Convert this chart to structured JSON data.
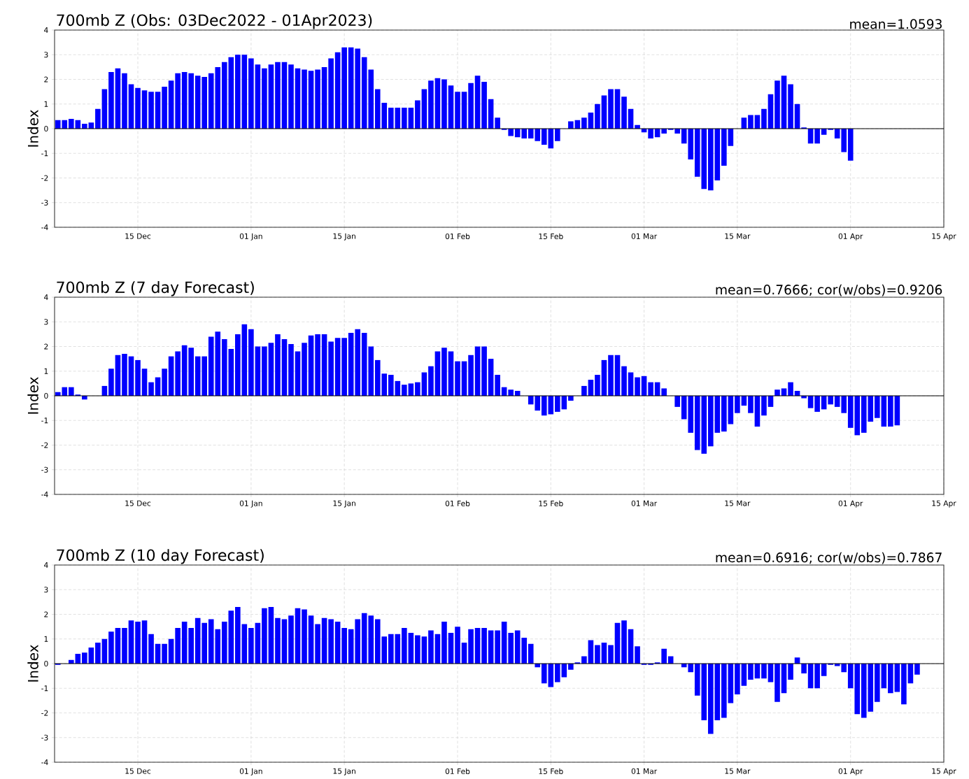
{
  "chart_data": [
    {
      "type": "bar",
      "title": "700mb Z (Obs: 03Dec2022 - 01Apr2023)",
      "annotations": [
        "mean=1.0593"
      ],
      "ylabel": "Index",
      "color": "#0000ff",
      "grid": true,
      "xlim": [
        "2022-12-02T12:00",
        "2023-04-15"
      ],
      "ylim": [
        -4,
        4
      ],
      "xticks": [
        {
          "value": "2022-12-15",
          "label": "15 Dec"
        },
        {
          "value": "2023-01-01",
          "label": "01 Jan"
        },
        {
          "value": "2023-01-15",
          "label": "15 Jan"
        },
        {
          "value": "2023-02-01",
          "label": "01 Feb"
        },
        {
          "value": "2023-02-15",
          "label": "15 Feb"
        },
        {
          "value": "2023-03-01",
          "label": "01 Mar"
        },
        {
          "value": "2023-03-15",
          "label": "15 Mar"
        },
        {
          "value": "2023-04-01",
          "label": "01 Apr"
        },
        {
          "value": "2023-04-15",
          "label": "15 Apr"
        }
      ],
      "yticks": [
        -4,
        -3,
        -2,
        -1,
        0,
        1,
        2,
        3,
        4
      ],
      "ref_lines": [
        {
          "axis": "y",
          "value": 0,
          "color": "#000000"
        }
      ],
      "x": [
        "2022-12-03",
        "2022-12-04",
        "2022-12-05",
        "2022-12-06",
        "2022-12-07",
        "2022-12-08",
        "2022-12-09",
        "2022-12-10",
        "2022-12-11",
        "2022-12-12",
        "2022-12-13",
        "2022-12-14",
        "2022-12-15",
        "2022-12-16",
        "2022-12-17",
        "2022-12-18",
        "2022-12-19",
        "2022-12-20",
        "2022-12-21",
        "2022-12-22",
        "2022-12-23",
        "2022-12-24",
        "2022-12-25",
        "2022-12-26",
        "2022-12-27",
        "2022-12-28",
        "2022-12-29",
        "2022-12-30",
        "2022-12-31",
        "2023-01-01",
        "2023-01-02",
        "2023-01-03",
        "2023-01-04",
        "2023-01-05",
        "2023-01-06",
        "2023-01-07",
        "2023-01-08",
        "2023-01-09",
        "2023-01-10",
        "2023-01-11",
        "2023-01-12",
        "2023-01-13",
        "2023-01-14",
        "2023-01-15",
        "2023-01-16",
        "2023-01-17",
        "2023-01-18",
        "2023-01-19",
        "2023-01-20",
        "2023-01-21",
        "2023-01-22",
        "2023-01-23",
        "2023-01-24",
        "2023-01-25",
        "2023-01-26",
        "2023-01-27",
        "2023-01-28",
        "2023-01-29",
        "2023-01-30",
        "2023-01-31",
        "2023-02-01",
        "2023-02-02",
        "2023-02-03",
        "2023-02-04",
        "2023-02-05",
        "2023-02-06",
        "2023-02-07",
        "2023-02-08",
        "2023-02-09",
        "2023-02-10",
        "2023-02-11",
        "2023-02-12",
        "2023-02-13",
        "2023-02-14",
        "2023-02-15",
        "2023-02-16",
        "2023-02-17",
        "2023-02-18",
        "2023-02-19",
        "2023-02-20",
        "2023-02-21",
        "2023-02-22",
        "2023-02-23",
        "2023-02-24",
        "2023-02-25",
        "2023-02-26",
        "2023-02-27",
        "2023-02-28",
        "2023-03-01",
        "2023-03-02",
        "2023-03-03",
        "2023-03-04",
        "2023-03-05",
        "2023-03-06",
        "2023-03-07",
        "2023-03-08",
        "2023-03-09",
        "2023-03-10",
        "2023-03-11",
        "2023-03-12",
        "2023-03-13",
        "2023-03-14",
        "2023-03-15",
        "2023-03-16",
        "2023-03-17",
        "2023-03-18",
        "2023-03-19",
        "2023-03-20",
        "2023-03-21",
        "2023-03-22",
        "2023-03-23",
        "2023-03-24",
        "2023-03-25",
        "2023-03-26",
        "2023-03-27",
        "2023-03-28",
        "2023-03-29",
        "2023-03-30",
        "2023-03-31",
        "2023-04-01"
      ],
      "values": [
        0.35,
        0.35,
        0.4,
        0.35,
        0.2,
        0.25,
        0.8,
        1.6,
        2.3,
        2.45,
        2.25,
        1.8,
        1.65,
        1.55,
        1.5,
        1.5,
        1.7,
        1.95,
        2.25,
        2.3,
        2.25,
        2.15,
        2.1,
        2.25,
        2.5,
        2.7,
        2.9,
        3.0,
        3.0,
        2.85,
        2.6,
        2.45,
        2.6,
        2.7,
        2.7,
        2.6,
        2.45,
        2.4,
        2.35,
        2.4,
        2.5,
        2.85,
        3.1,
        3.3,
        3.3,
        3.25,
        2.9,
        2.4,
        1.6,
        1.05,
        0.85,
        0.85,
        0.85,
        0.85,
        1.15,
        1.6,
        1.95,
        2.05,
        2.0,
        1.75,
        1.5,
        1.5,
        1.85,
        2.15,
        1.9,
        1.2,
        0.45,
        -0.05,
        -0.3,
        -0.35,
        -0.4,
        -0.4,
        -0.5,
        -0.65,
        -0.8,
        -0.5,
        0,
        0.3,
        0.35,
        0.45,
        0.65,
        1.0,
        1.35,
        1.6,
        1.6,
        1.3,
        0.8,
        0.15,
        -0.15,
        -0.4,
        -0.35,
        -0.2,
        -0.05,
        -0.2,
        -0.6,
        -1.25,
        -1.95,
        -2.45,
        -2.5,
        -2.1,
        -1.5,
        -0.7,
        0,
        0.45,
        0.55,
        0.55,
        0.8,
        1.4,
        1.95,
        2.15,
        1.8,
        1.0,
        0.05,
        -0.6,
        -0.6,
        -0.25,
        -0.05,
        -0.4,
        -0.95,
        -1.3
      ]
    },
    {
      "type": "bar",
      "title": "700mb Z (7 day Forecast)",
      "annotations": [
        "mean=0.7666; cor(w/obs)=0.9206"
      ],
      "ylabel": "Index",
      "color": "#0000ff",
      "grid": true,
      "xlim": [
        "2022-12-02T12:00",
        "2023-04-15"
      ],
      "ylim": [
        -4,
        4
      ],
      "xticks": [
        {
          "value": "2022-12-15",
          "label": "15 Dec"
        },
        {
          "value": "2023-01-01",
          "label": "01 Jan"
        },
        {
          "value": "2023-01-15",
          "label": "15 Jan"
        },
        {
          "value": "2023-02-01",
          "label": "01 Feb"
        },
        {
          "value": "2023-02-15",
          "label": "15 Feb"
        },
        {
          "value": "2023-03-01",
          "label": "01 Mar"
        },
        {
          "value": "2023-03-15",
          "label": "15 Mar"
        },
        {
          "value": "2023-04-01",
          "label": "01 Apr"
        },
        {
          "value": "2023-04-15",
          "label": "15 Apr"
        }
      ],
      "yticks": [
        -4,
        -3,
        -2,
        -1,
        0,
        1,
        2,
        3,
        4
      ],
      "ref_lines": [
        {
          "axis": "y",
          "value": 0,
          "color": "#000000"
        }
      ],
      "x": [
        "2022-12-03",
        "2022-12-04",
        "2022-12-05",
        "2022-12-06",
        "2022-12-07",
        "2022-12-08",
        "2022-12-09",
        "2022-12-10",
        "2022-12-11",
        "2022-12-12",
        "2022-12-13",
        "2022-12-14",
        "2022-12-15",
        "2022-12-16",
        "2022-12-17",
        "2022-12-18",
        "2022-12-19",
        "2022-12-20",
        "2022-12-21",
        "2022-12-22",
        "2022-12-23",
        "2022-12-24",
        "2022-12-25",
        "2022-12-26",
        "2022-12-27",
        "2022-12-28",
        "2022-12-29",
        "2022-12-30",
        "2022-12-31",
        "2023-01-01",
        "2023-01-02",
        "2023-01-03",
        "2023-01-04",
        "2023-01-05",
        "2023-01-06",
        "2023-01-07",
        "2023-01-08",
        "2023-01-09",
        "2023-01-10",
        "2023-01-11",
        "2023-01-12",
        "2023-01-13",
        "2023-01-14",
        "2023-01-15",
        "2023-01-16",
        "2023-01-17",
        "2023-01-18",
        "2023-01-19",
        "2023-01-20",
        "2023-01-21",
        "2023-01-22",
        "2023-01-23",
        "2023-01-24",
        "2023-01-25",
        "2023-01-26",
        "2023-01-27",
        "2023-01-28",
        "2023-01-29",
        "2023-01-30",
        "2023-01-31",
        "2023-02-01",
        "2023-02-02",
        "2023-02-03",
        "2023-02-04",
        "2023-02-05",
        "2023-02-06",
        "2023-02-07",
        "2023-02-08",
        "2023-02-09",
        "2023-02-10",
        "2023-02-11",
        "2023-02-12",
        "2023-02-13",
        "2023-02-14",
        "2023-02-15",
        "2023-02-16",
        "2023-02-17",
        "2023-02-18",
        "2023-02-19",
        "2023-02-20",
        "2023-02-21",
        "2023-02-22",
        "2023-02-23",
        "2023-02-24",
        "2023-02-25",
        "2023-02-26",
        "2023-02-27",
        "2023-02-28",
        "2023-03-01",
        "2023-03-02",
        "2023-03-03",
        "2023-03-04",
        "2023-03-05",
        "2023-03-06",
        "2023-03-07",
        "2023-03-08",
        "2023-03-09",
        "2023-03-10",
        "2023-03-11",
        "2023-03-12",
        "2023-03-13",
        "2023-03-14",
        "2023-03-15",
        "2023-03-16",
        "2023-03-17",
        "2023-03-18",
        "2023-03-19",
        "2023-03-20",
        "2023-03-21",
        "2023-03-22",
        "2023-03-23",
        "2023-03-24",
        "2023-03-25",
        "2023-03-26",
        "2023-03-27",
        "2023-03-28",
        "2023-03-29",
        "2023-03-30",
        "2023-03-31",
        "2023-04-01",
        "2023-04-02",
        "2023-04-03",
        "2023-04-04",
        "2023-04-05",
        "2023-04-06",
        "2023-04-07",
        "2023-04-08"
      ],
      "values": [
        0.15,
        0.35,
        0.35,
        0.05,
        -0.15,
        null,
        null,
        0.4,
        1.1,
        1.65,
        1.7,
        1.6,
        1.45,
        1.1,
        0.55,
        0.75,
        1.1,
        1.6,
        1.8,
        2.05,
        1.95,
        1.6,
        1.6,
        2.4,
        2.6,
        2.3,
        1.9,
        2.5,
        2.9,
        2.7,
        2.0,
        2.0,
        2.15,
        2.5,
        2.3,
        2.1,
        1.8,
        2.15,
        2.45,
        2.5,
        2.5,
        2.2,
        2.35,
        2.35,
        2.55,
        2.7,
        2.55,
        2.0,
        1.45,
        0.9,
        0.85,
        0.6,
        0.45,
        0.5,
        0.55,
        0.95,
        1.2,
        1.8,
        1.95,
        1.8,
        1.4,
        1.4,
        1.65,
        2.0,
        2.0,
        1.5,
        0.85,
        0.35,
        0.25,
        0.2,
        0,
        -0.35,
        -0.6,
        -0.8,
        -0.75,
        -0.65,
        -0.55,
        -0.2,
        0,
        0.4,
        0.65,
        0.85,
        1.45,
        1.65,
        1.65,
        1.2,
        0.95,
        0.75,
        0.8,
        0.55,
        0.55,
        0.3,
        0,
        -0.45,
        -0.95,
        -1.5,
        -2.2,
        -2.35,
        -2.05,
        -1.5,
        -1.45,
        -1.15,
        -0.7,
        -0.4,
        -0.7,
        -1.25,
        -0.8,
        -0.45,
        0.25,
        0.3,
        0.55,
        0.2,
        -0.1,
        -0.5,
        -0.65,
        -0.55,
        -0.35,
        -0.45,
        -0.7,
        -1.3,
        -1.6,
        -1.5,
        -1.05,
        -0.9,
        -1.25,
        -1.25,
        -1.2
      ]
    },
    {
      "type": "bar",
      "title": "700mb Z (10 day Forecast)",
      "annotations": [
        "mean=0.6916; cor(w/obs)=0.7867"
      ],
      "ylabel": "Index",
      "color": "#0000ff",
      "grid": true,
      "xlim": [
        "2022-12-02T12:00",
        "2023-04-15"
      ],
      "ylim": [
        -4,
        4
      ],
      "xticks": [
        {
          "value": "2022-12-15",
          "label": "15 Dec"
        },
        {
          "value": "2023-01-01",
          "label": "01 Jan"
        },
        {
          "value": "2023-01-15",
          "label": "15 Jan"
        },
        {
          "value": "2023-02-01",
          "label": "01 Feb"
        },
        {
          "value": "2023-02-15",
          "label": "15 Feb"
        },
        {
          "value": "2023-03-01",
          "label": "01 Mar"
        },
        {
          "value": "2023-03-15",
          "label": "15 Mar"
        },
        {
          "value": "2023-04-01",
          "label": "01 Apr"
        },
        {
          "value": "2023-04-15",
          "label": "15 Apr"
        }
      ],
      "yticks": [
        -4,
        -3,
        -2,
        -1,
        0,
        1,
        2,
        3,
        4
      ],
      "ref_lines": [
        {
          "axis": "y",
          "value": 0,
          "color": "#000000"
        }
      ],
      "x": [
        "2022-12-03",
        "2022-12-04",
        "2022-12-05",
        "2022-12-06",
        "2022-12-07",
        "2022-12-08",
        "2022-12-09",
        "2022-12-10",
        "2022-12-11",
        "2022-12-12",
        "2022-12-13",
        "2022-12-14",
        "2022-12-15",
        "2022-12-16",
        "2022-12-17",
        "2022-12-18",
        "2022-12-19",
        "2022-12-20",
        "2022-12-21",
        "2022-12-22",
        "2022-12-23",
        "2022-12-24",
        "2022-12-25",
        "2022-12-26",
        "2022-12-27",
        "2022-12-28",
        "2022-12-29",
        "2022-12-30",
        "2022-12-31",
        "2023-01-01",
        "2023-01-02",
        "2023-01-03",
        "2023-01-04",
        "2023-01-05",
        "2023-01-06",
        "2023-01-07",
        "2023-01-08",
        "2023-01-09",
        "2023-01-10",
        "2023-01-11",
        "2023-01-12",
        "2023-01-13",
        "2023-01-14",
        "2023-01-15",
        "2023-01-16",
        "2023-01-17",
        "2023-01-18",
        "2023-01-19",
        "2023-01-20",
        "2023-01-21",
        "2023-01-22",
        "2023-01-23",
        "2023-01-24",
        "2023-01-25",
        "2023-01-26",
        "2023-01-27",
        "2023-01-28",
        "2023-01-29",
        "2023-01-30",
        "2023-01-31",
        "2023-02-01",
        "2023-02-02",
        "2023-02-03",
        "2023-02-04",
        "2023-02-05",
        "2023-02-06",
        "2023-02-07",
        "2023-02-08",
        "2023-02-09",
        "2023-02-10",
        "2023-02-11",
        "2023-02-12",
        "2023-02-13",
        "2023-02-14",
        "2023-02-15",
        "2023-02-16",
        "2023-02-17",
        "2023-02-18",
        "2023-02-19",
        "2023-02-20",
        "2023-02-21",
        "2023-02-22",
        "2023-02-23",
        "2023-02-24",
        "2023-02-25",
        "2023-02-26",
        "2023-02-27",
        "2023-02-28",
        "2023-03-01",
        "2023-03-02",
        "2023-03-03",
        "2023-03-04",
        "2023-03-05",
        "2023-03-06",
        "2023-03-07",
        "2023-03-08",
        "2023-03-09",
        "2023-03-10",
        "2023-03-11",
        "2023-03-12",
        "2023-03-13",
        "2023-03-14",
        "2023-03-15",
        "2023-03-16",
        "2023-03-17",
        "2023-03-18",
        "2023-03-19",
        "2023-03-20",
        "2023-03-21",
        "2023-03-22",
        "2023-03-23",
        "2023-03-24",
        "2023-03-25",
        "2023-03-26",
        "2023-03-27",
        "2023-03-28",
        "2023-03-29",
        "2023-03-30",
        "2023-03-31",
        "2023-04-01",
        "2023-04-02",
        "2023-04-03",
        "2023-04-04",
        "2023-04-05",
        "2023-04-06",
        "2023-04-07",
        "2023-04-08",
        "2023-04-09",
        "2023-04-10",
        "2023-04-11"
      ],
      "values": [
        -0.05,
        0,
        0.15,
        0.4,
        0.45,
        0.65,
        0.85,
        1.0,
        1.3,
        1.45,
        1.45,
        1.75,
        1.7,
        1.75,
        1.2,
        0.8,
        0.8,
        1.0,
        1.45,
        1.7,
        1.45,
        1.85,
        1.65,
        1.8,
        1.4,
        1.7,
        2.15,
        2.3,
        1.6,
        1.45,
        1.65,
        2.25,
        2.3,
        1.85,
        1.8,
        1.95,
        2.25,
        2.2,
        1.95,
        1.6,
        1.85,
        1.8,
        1.7,
        1.45,
        1.4,
        1.8,
        2.05,
        1.95,
        1.8,
        1.1,
        1.2,
        1.2,
        1.45,
        1.25,
        1.15,
        1.1,
        1.35,
        1.2,
        1.7,
        1.25,
        1.5,
        0.85,
        1.4,
        1.45,
        1.45,
        1.35,
        1.35,
        1.7,
        1.25,
        1.35,
        1.05,
        0.8,
        -0.15,
        -0.8,
        -0.95,
        -0.75,
        -0.55,
        -0.25,
        0.05,
        0.3,
        0.95,
        0.75,
        0.85,
        0.75,
        1.65,
        1.75,
        1.4,
        0.7,
        -0.05,
        -0.05,
        0.05,
        0.6,
        0.3,
        0,
        -0.15,
        -0.35,
        -1.3,
        -2.3,
        -2.85,
        -2.3,
        -2.2,
        -1.6,
        -1.25,
        -0.9,
        -0.65,
        -0.6,
        -0.6,
        -0.75,
        -1.55,
        -1.2,
        -0.65,
        0.25,
        -0.4,
        -1.0,
        -1.0,
        -0.5,
        -0.05,
        -0.1,
        -0.35,
        -1.0,
        -2.05,
        -2.2,
        -1.95,
        -1.55,
        -1.0,
        -1.2,
        -1.15,
        -1.65,
        -0.8,
        -0.45
      ]
    }
  ]
}
